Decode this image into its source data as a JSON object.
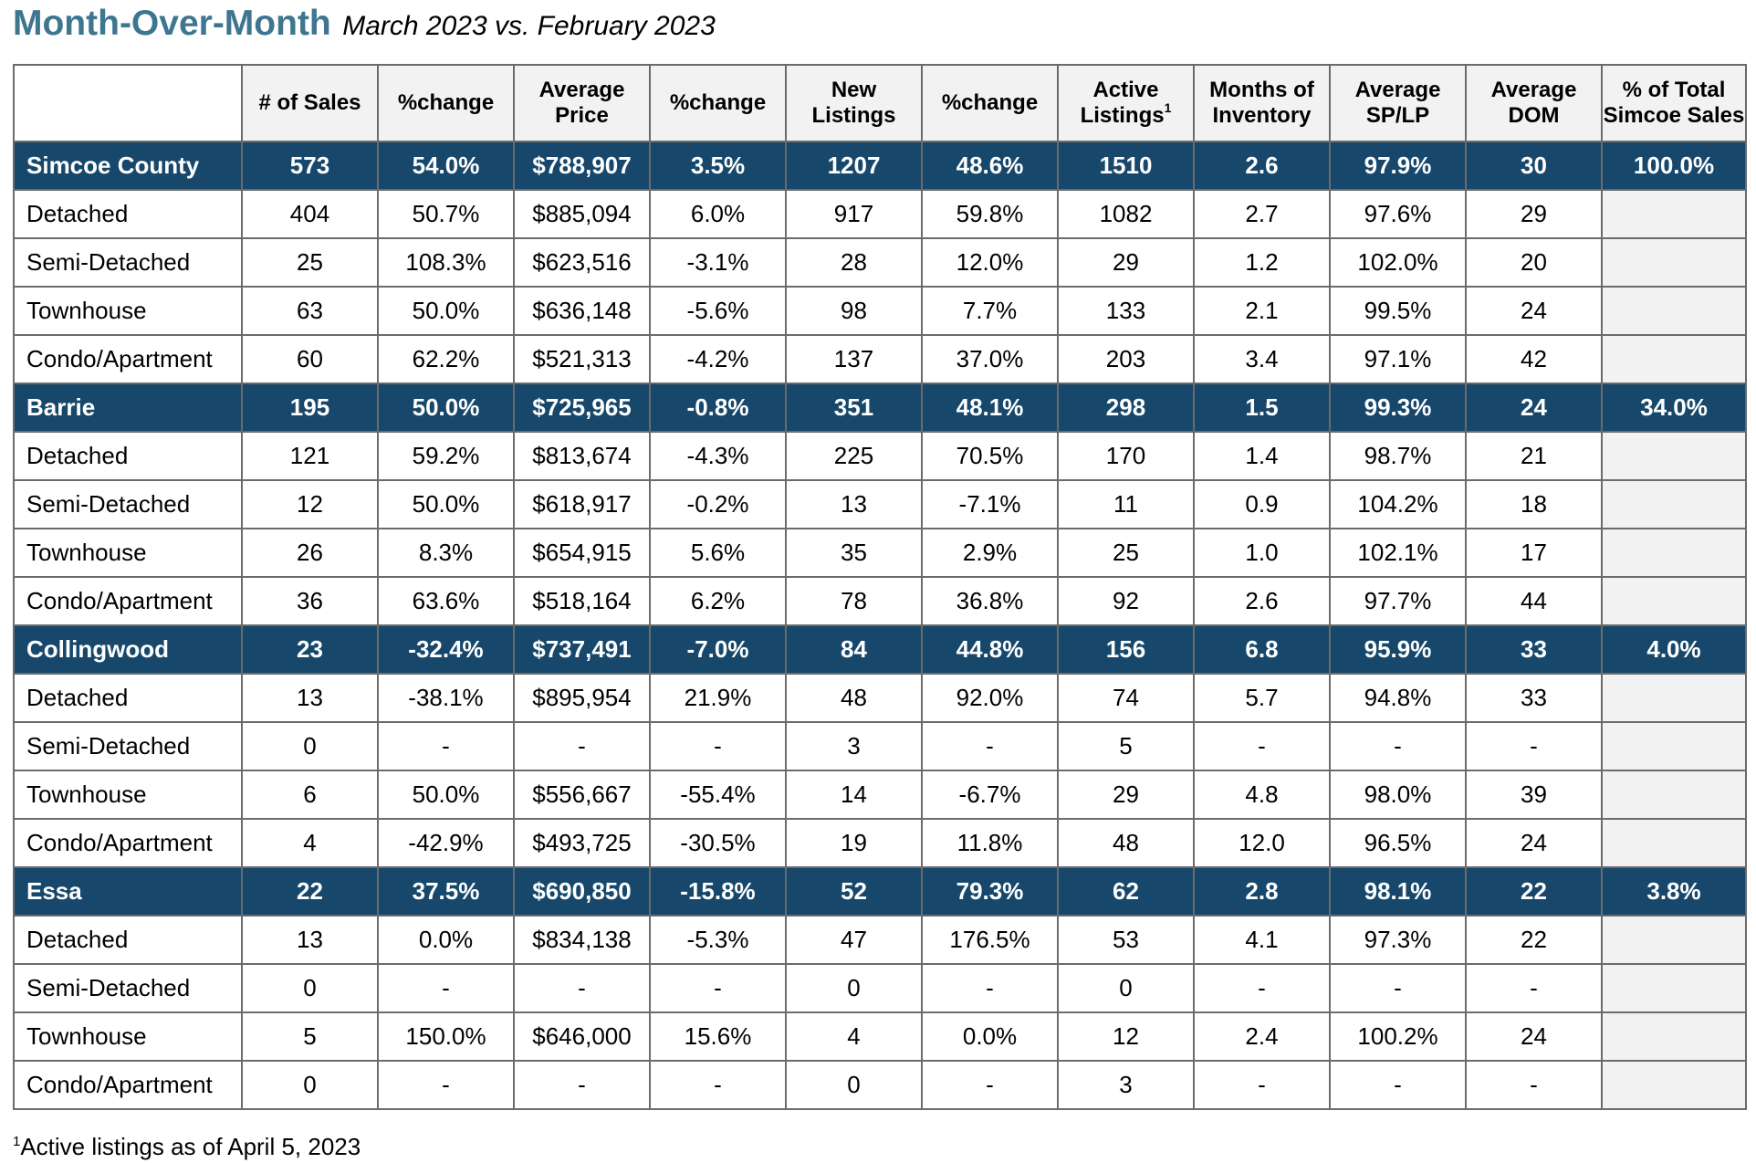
{
  "header": {
    "title": "Month-Over-Month",
    "subtitle": "March 2023 vs. February 2023"
  },
  "table": {
    "columns": [
      {
        "label": "",
        "sup": ""
      },
      {
        "label": "# of Sales",
        "sup": ""
      },
      {
        "label": "%change",
        "sup": ""
      },
      {
        "label": "Average Price",
        "sup": ""
      },
      {
        "label": "%change",
        "sup": ""
      },
      {
        "label": "New Listings",
        "sup": ""
      },
      {
        "label": "%change",
        "sup": ""
      },
      {
        "label": "Active Listings",
        "sup": "1"
      },
      {
        "label": "Months of Inventory",
        "sup": ""
      },
      {
        "label": "Average SP/LP",
        "sup": ""
      },
      {
        "label": "Average DOM",
        "sup": ""
      },
      {
        "label": "% of Total Simcoe Sales",
        "sup": ""
      }
    ],
    "rows": [
      {
        "type": "group",
        "cells": [
          "Simcoe County",
          "573",
          "54.0%",
          "$788,907",
          "3.5%",
          "1207",
          "48.6%",
          "1510",
          "2.6",
          "97.9%",
          "30",
          "100.0%"
        ]
      },
      {
        "type": "sub",
        "cells": [
          "Detached",
          "404",
          "50.7%",
          "$885,094",
          "6.0%",
          "917",
          "59.8%",
          "1082",
          "2.7",
          "97.6%",
          "29",
          ""
        ]
      },
      {
        "type": "sub",
        "cells": [
          "Semi-Detached",
          "25",
          "108.3%",
          "$623,516",
          "-3.1%",
          "28",
          "12.0%",
          "29",
          "1.2",
          "102.0%",
          "20",
          ""
        ]
      },
      {
        "type": "sub",
        "cells": [
          "Townhouse",
          "63",
          "50.0%",
          "$636,148",
          "-5.6%",
          "98",
          "7.7%",
          "133",
          "2.1",
          "99.5%",
          "24",
          ""
        ]
      },
      {
        "type": "sub",
        "cells": [
          "Condo/Apartment",
          "60",
          "62.2%",
          "$521,313",
          "-4.2%",
          "137",
          "37.0%",
          "203",
          "3.4",
          "97.1%",
          "42",
          ""
        ]
      },
      {
        "type": "group",
        "cells": [
          "Barrie",
          "195",
          "50.0%",
          "$725,965",
          "-0.8%",
          "351",
          "48.1%",
          "298",
          "1.5",
          "99.3%",
          "24",
          "34.0%"
        ]
      },
      {
        "type": "sub",
        "cells": [
          "Detached",
          "121",
          "59.2%",
          "$813,674",
          "-4.3%",
          "225",
          "70.5%",
          "170",
          "1.4",
          "98.7%",
          "21",
          ""
        ]
      },
      {
        "type": "sub",
        "cells": [
          "Semi-Detached",
          "12",
          "50.0%",
          "$618,917",
          "-0.2%",
          "13",
          "-7.1%",
          "11",
          "0.9",
          "104.2%",
          "18",
          ""
        ]
      },
      {
        "type": "sub",
        "cells": [
          "Townhouse",
          "26",
          "8.3%",
          "$654,915",
          "5.6%",
          "35",
          "2.9%",
          "25",
          "1.0",
          "102.1%",
          "17",
          ""
        ]
      },
      {
        "type": "sub",
        "cells": [
          "Condo/Apartment",
          "36",
          "63.6%",
          "$518,164",
          "6.2%",
          "78",
          "36.8%",
          "92",
          "2.6",
          "97.7%",
          "44",
          ""
        ]
      },
      {
        "type": "group",
        "cells": [
          "Collingwood",
          "23",
          "-32.4%",
          "$737,491",
          "-7.0%",
          "84",
          "44.8%",
          "156",
          "6.8",
          "95.9%",
          "33",
          "4.0%"
        ]
      },
      {
        "type": "sub",
        "cells": [
          "Detached",
          "13",
          "-38.1%",
          "$895,954",
          "21.9%",
          "48",
          "92.0%",
          "74",
          "5.7",
          "94.8%",
          "33",
          ""
        ]
      },
      {
        "type": "sub",
        "cells": [
          "Semi-Detached",
          "0",
          "-",
          "-",
          "-",
          "3",
          "-",
          "5",
          "-",
          "-",
          "-",
          ""
        ]
      },
      {
        "type": "sub",
        "cells": [
          "Townhouse",
          "6",
          "50.0%",
          "$556,667",
          "-55.4%",
          "14",
          "-6.7%",
          "29",
          "4.8",
          "98.0%",
          "39",
          ""
        ]
      },
      {
        "type": "sub",
        "cells": [
          "Condo/Apartment",
          "4",
          "-42.9%",
          "$493,725",
          "-30.5%",
          "19",
          "11.8%",
          "48",
          "12.0",
          "96.5%",
          "24",
          ""
        ]
      },
      {
        "type": "group",
        "cells": [
          "Essa",
          "22",
          "37.5%",
          "$690,850",
          "-15.8%",
          "52",
          "79.3%",
          "62",
          "2.8",
          "98.1%",
          "22",
          "3.8%"
        ]
      },
      {
        "type": "sub",
        "cells": [
          "Detached",
          "13",
          "0.0%",
          "$834,138",
          "-5.3%",
          "47",
          "176.5%",
          "53",
          "4.1",
          "97.3%",
          "22",
          ""
        ]
      },
      {
        "type": "sub",
        "cells": [
          "Semi-Detached",
          "0",
          "-",
          "-",
          "-",
          "0",
          "-",
          "0",
          "-",
          "-",
          "-",
          ""
        ]
      },
      {
        "type": "sub",
        "cells": [
          "Townhouse",
          "5",
          "150.0%",
          "$646,000",
          "15.6%",
          "4",
          "0.0%",
          "12",
          "2.4",
          "100.2%",
          "24",
          ""
        ]
      },
      {
        "type": "sub",
        "cells": [
          "Condo/Apartment",
          "0",
          "-",
          "-",
          "-",
          "0",
          "-",
          "3",
          "-",
          "-",
          "-",
          ""
        ]
      }
    ]
  },
  "footnote": {
    "marker": "1",
    "text": "Active listings as of April 5, 2023"
  },
  "colors": {
    "title": "#3e7690",
    "group_row_bg": "#17486b",
    "group_row_text": "#ffffff",
    "shade_bg": "#f2f2f2",
    "border": "#6b6b6b"
  }
}
